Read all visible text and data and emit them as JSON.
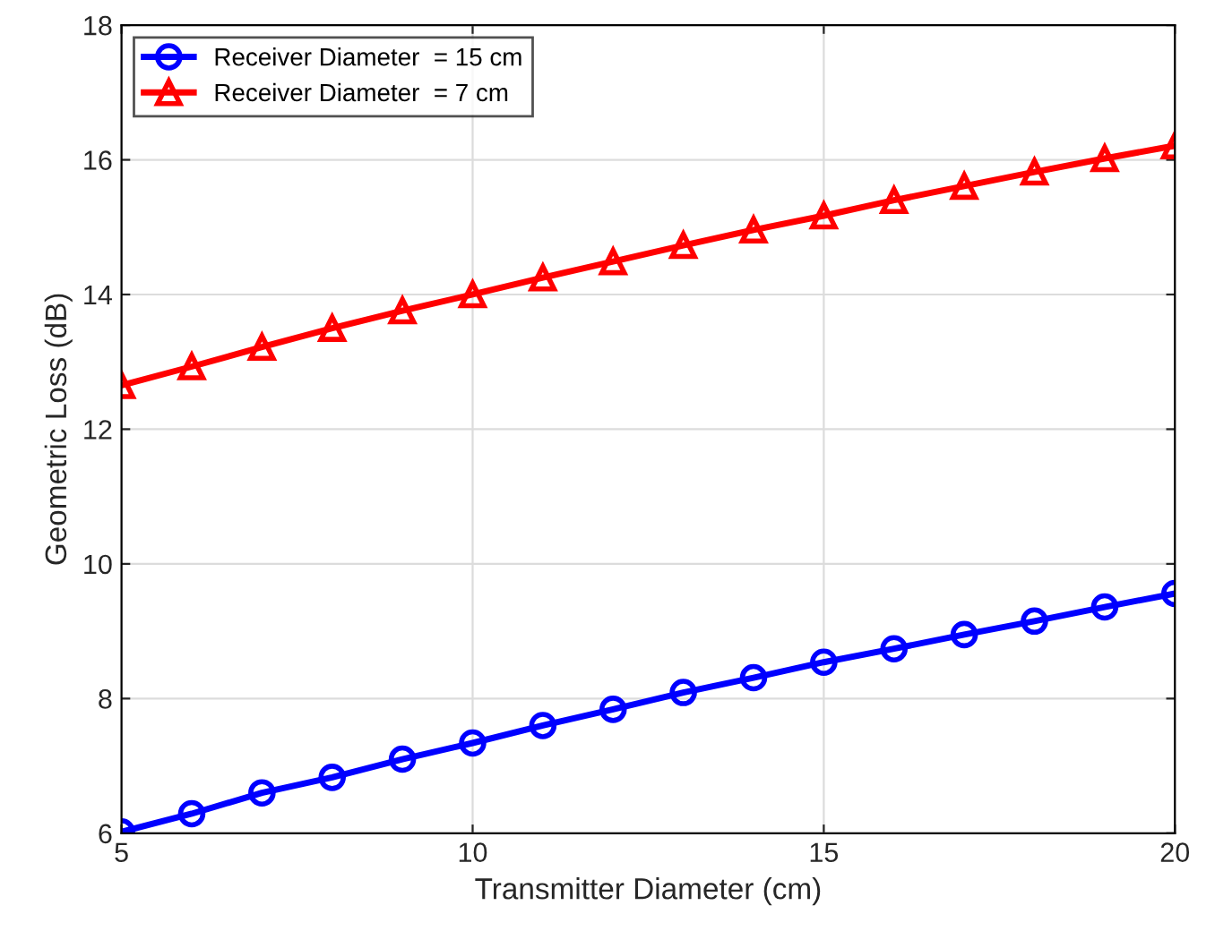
{
  "chart_data": {
    "type": "line",
    "xlabel": "Transmitter Diameter (cm)",
    "ylabel": "Geometric Loss (dB)",
    "x": [
      5,
      6,
      7,
      8,
      9,
      10,
      11,
      12,
      13,
      14,
      15,
      16,
      17,
      18,
      19,
      20
    ],
    "series": [
      {
        "name": "Receiver Diameter  = 15 cm",
        "color": "#0000ff",
        "marker": "circle",
        "values": [
          6.02,
          6.29,
          6.6,
          6.83,
          7.1,
          7.34,
          7.6,
          7.84,
          8.09,
          8.31,
          8.54,
          8.74,
          8.95,
          9.15,
          9.36,
          9.56
        ]
      },
      {
        "name": "Receiver Diameter  = 7 cm",
        "color": "#ff0000",
        "marker": "triangle",
        "values": [
          12.65,
          12.93,
          13.22,
          13.5,
          13.76,
          14.0,
          14.25,
          14.49,
          14.73,
          14.96,
          15.17,
          15.4,
          15.61,
          15.82,
          16.02,
          16.21
        ]
      }
    ],
    "xlim": [
      5,
      20
    ],
    "xticks": [
      5,
      10,
      15,
      20
    ],
    "ylim": [
      6,
      18
    ],
    "yticks": [
      6,
      8,
      10,
      12,
      14,
      16,
      18
    ],
    "grid": true,
    "legend": "top left",
    "line_style": "solid"
  }
}
